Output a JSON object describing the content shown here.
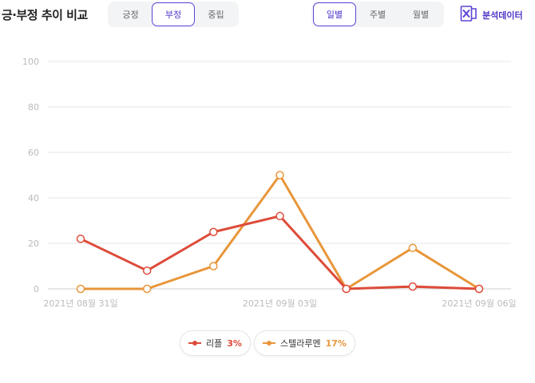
{
  "header": {
    "title": "긍·부정 추이 비교",
    "sentiment_tabs": [
      "긍정",
      "부정",
      "중립"
    ],
    "sentiment_active": "부정",
    "period_tabs": [
      "일별",
      "주별",
      "월별"
    ],
    "period_active": "일별",
    "export_label": "분석데이터"
  },
  "legend": [
    {
      "name": "리플",
      "pct": "3%",
      "color": "#dd4b39"
    },
    {
      "name": "스텔라루멘",
      "pct": "17%",
      "color": "#e8963a"
    }
  ],
  "chart_data": {
    "type": "line",
    "x": [
      "2021-08-31",
      "2021-09-01",
      "2021-09-02",
      "2021-09-03",
      "2021-09-04",
      "2021-09-05",
      "2021-09-06"
    ],
    "x_tick_labels": [
      "2021년 08월 31일",
      "2021년 09월 03일",
      "2021년 09월 06일"
    ],
    "x_tick_index": [
      0,
      3,
      6
    ],
    "yticks": [
      0,
      20,
      40,
      60,
      80,
      100
    ],
    "ylim": [
      0,
      100
    ],
    "grid": true,
    "legend_position": "bottom",
    "series": [
      {
        "name": "리플",
        "color": "#dd4b39",
        "values": [
          22,
          8,
          25,
          32,
          0,
          1,
          0
        ]
      },
      {
        "name": "스텔라루멘",
        "color": "#e8963a",
        "values": [
          0,
          0,
          10,
          50,
          0,
          18,
          0
        ]
      }
    ]
  }
}
